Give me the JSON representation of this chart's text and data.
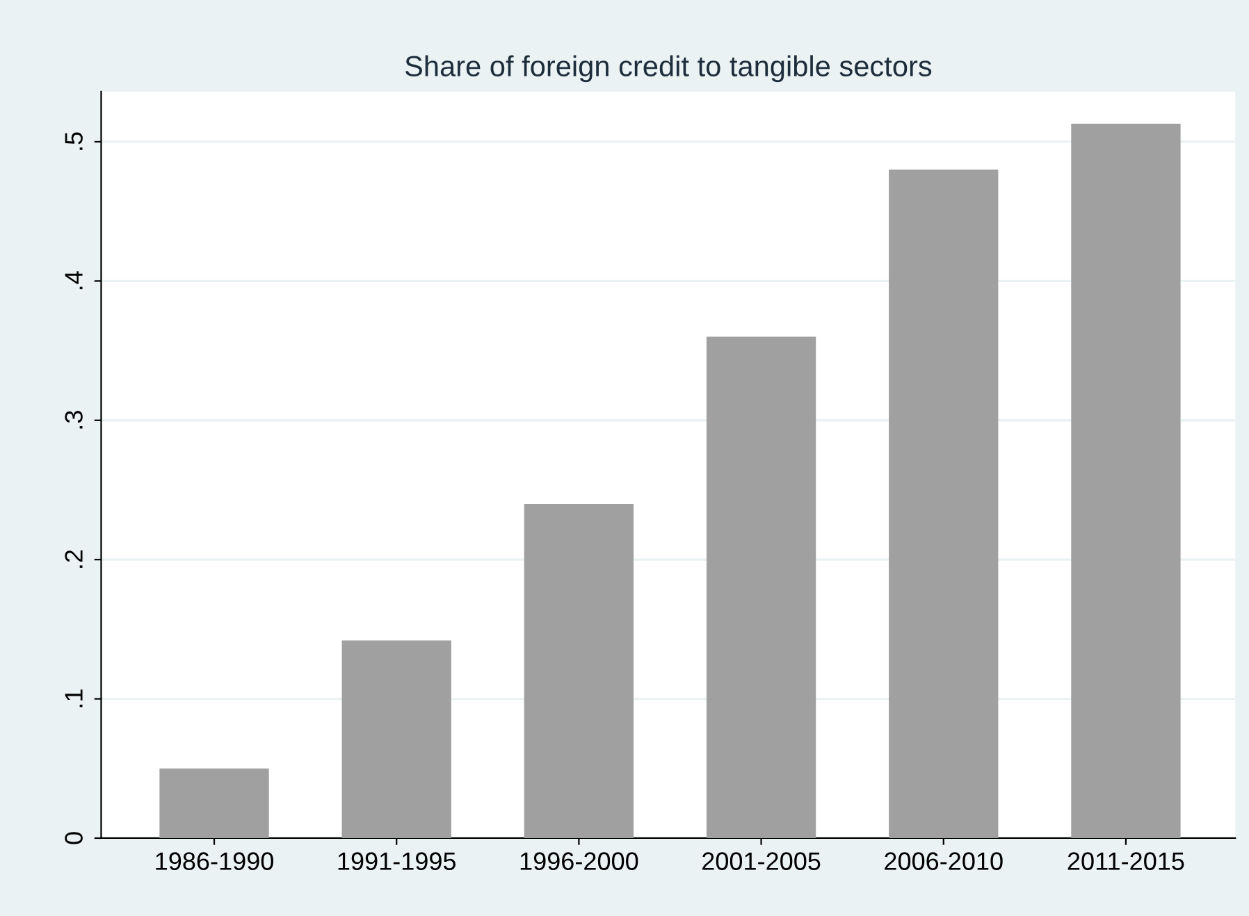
{
  "chart_data": {
    "type": "bar",
    "title": "Share of foreign credit to tangible sectors",
    "categories": [
      "1986-1990",
      "1991-1995",
      "1996-2000",
      "2001-2005",
      "2006-2010",
      "2011-2015"
    ],
    "values": [
      0.05,
      0.142,
      0.24,
      0.36,
      0.48,
      0.513
    ],
    "color": "#a0a0a0",
    "ylim": [
      0,
      0.536
    ],
    "yticks": [
      0,
      {
        "value": 0.1,
        "label": ".1"
      },
      {
        "value": 0.2,
        "label": ".2"
      },
      {
        "value": 0.3,
        "label": ".3"
      },
      {
        "value": 0.4,
        "label": ".4"
      },
      {
        "value": 0.5,
        "label": ".5"
      }
    ],
    "grid": "y",
    "legend": false
  }
}
